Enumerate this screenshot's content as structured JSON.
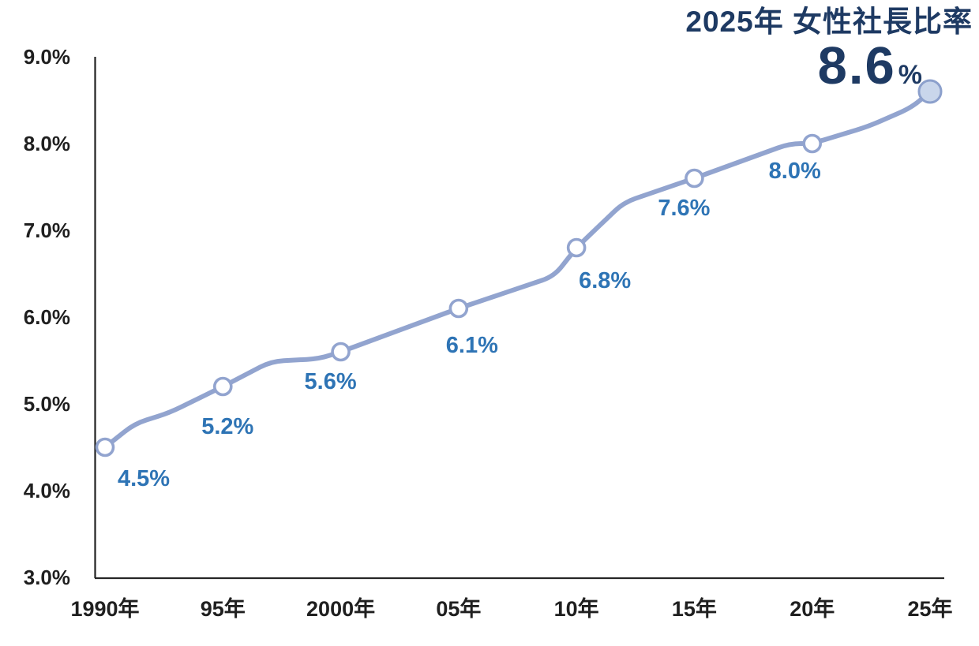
{
  "header": {
    "title": "2025年 女性社長比率",
    "highlight_value": "8.6",
    "highlight_unit": "%"
  },
  "chart_data": {
    "type": "line",
    "title": "2025年 女性社長比率",
    "subtitle_value": "8.6%",
    "categories": [
      "1990年",
      "95年",
      "2000年",
      "05年",
      "10年",
      "15年",
      "20年",
      "25年"
    ],
    "values": [
      4.5,
      5.2,
      5.6,
      6.1,
      6.8,
      7.6,
      8.0,
      8.6
    ],
    "point_labels": [
      "4.5%",
      "5.2%",
      "5.6%",
      "6.1%",
      "6.8%",
      "7.6%",
      "8.0%",
      ""
    ],
    "final_point_label": "8.6%",
    "xlabel": "",
    "ylabel": "",
    "ylim": [
      3.0,
      9.0
    ],
    "ytick_step": 1.0,
    "ytick_labels": [
      "3.0%",
      "4.0%",
      "5.0%",
      "6.0%",
      "7.0%",
      "8.0%",
      "9.0%"
    ],
    "grid": false,
    "legend_position": "none",
    "trend_shape_points": [
      [
        0,
        4.5
      ],
      [
        0.25,
        4.77
      ],
      [
        0.55,
        4.9
      ],
      [
        1,
        5.2
      ],
      [
        1.41,
        5.49
      ],
      [
        1.82,
        5.52
      ],
      [
        2,
        5.6
      ],
      [
        3,
        6.1
      ],
      [
        3.81,
        6.47
      ],
      [
        4,
        6.8
      ],
      [
        4.4,
        7.32
      ],
      [
        5,
        7.6
      ],
      [
        5.81,
        8.0
      ],
      [
        6,
        8.0
      ],
      [
        6.48,
        8.2
      ],
      [
        6.85,
        8.42
      ],
      [
        7,
        8.6
      ]
    ],
    "colors": {
      "line": "#92A4CF",
      "marker_fill": "#FFFFFF",
      "final_marker_fill": "#C9D6EB",
      "final_marker_stroke": "#8CA0CC",
      "point_label": "#2E74B5",
      "title": "#1E3A63",
      "axis_line": "#262626",
      "tick_text": "#1F1F1F"
    }
  }
}
